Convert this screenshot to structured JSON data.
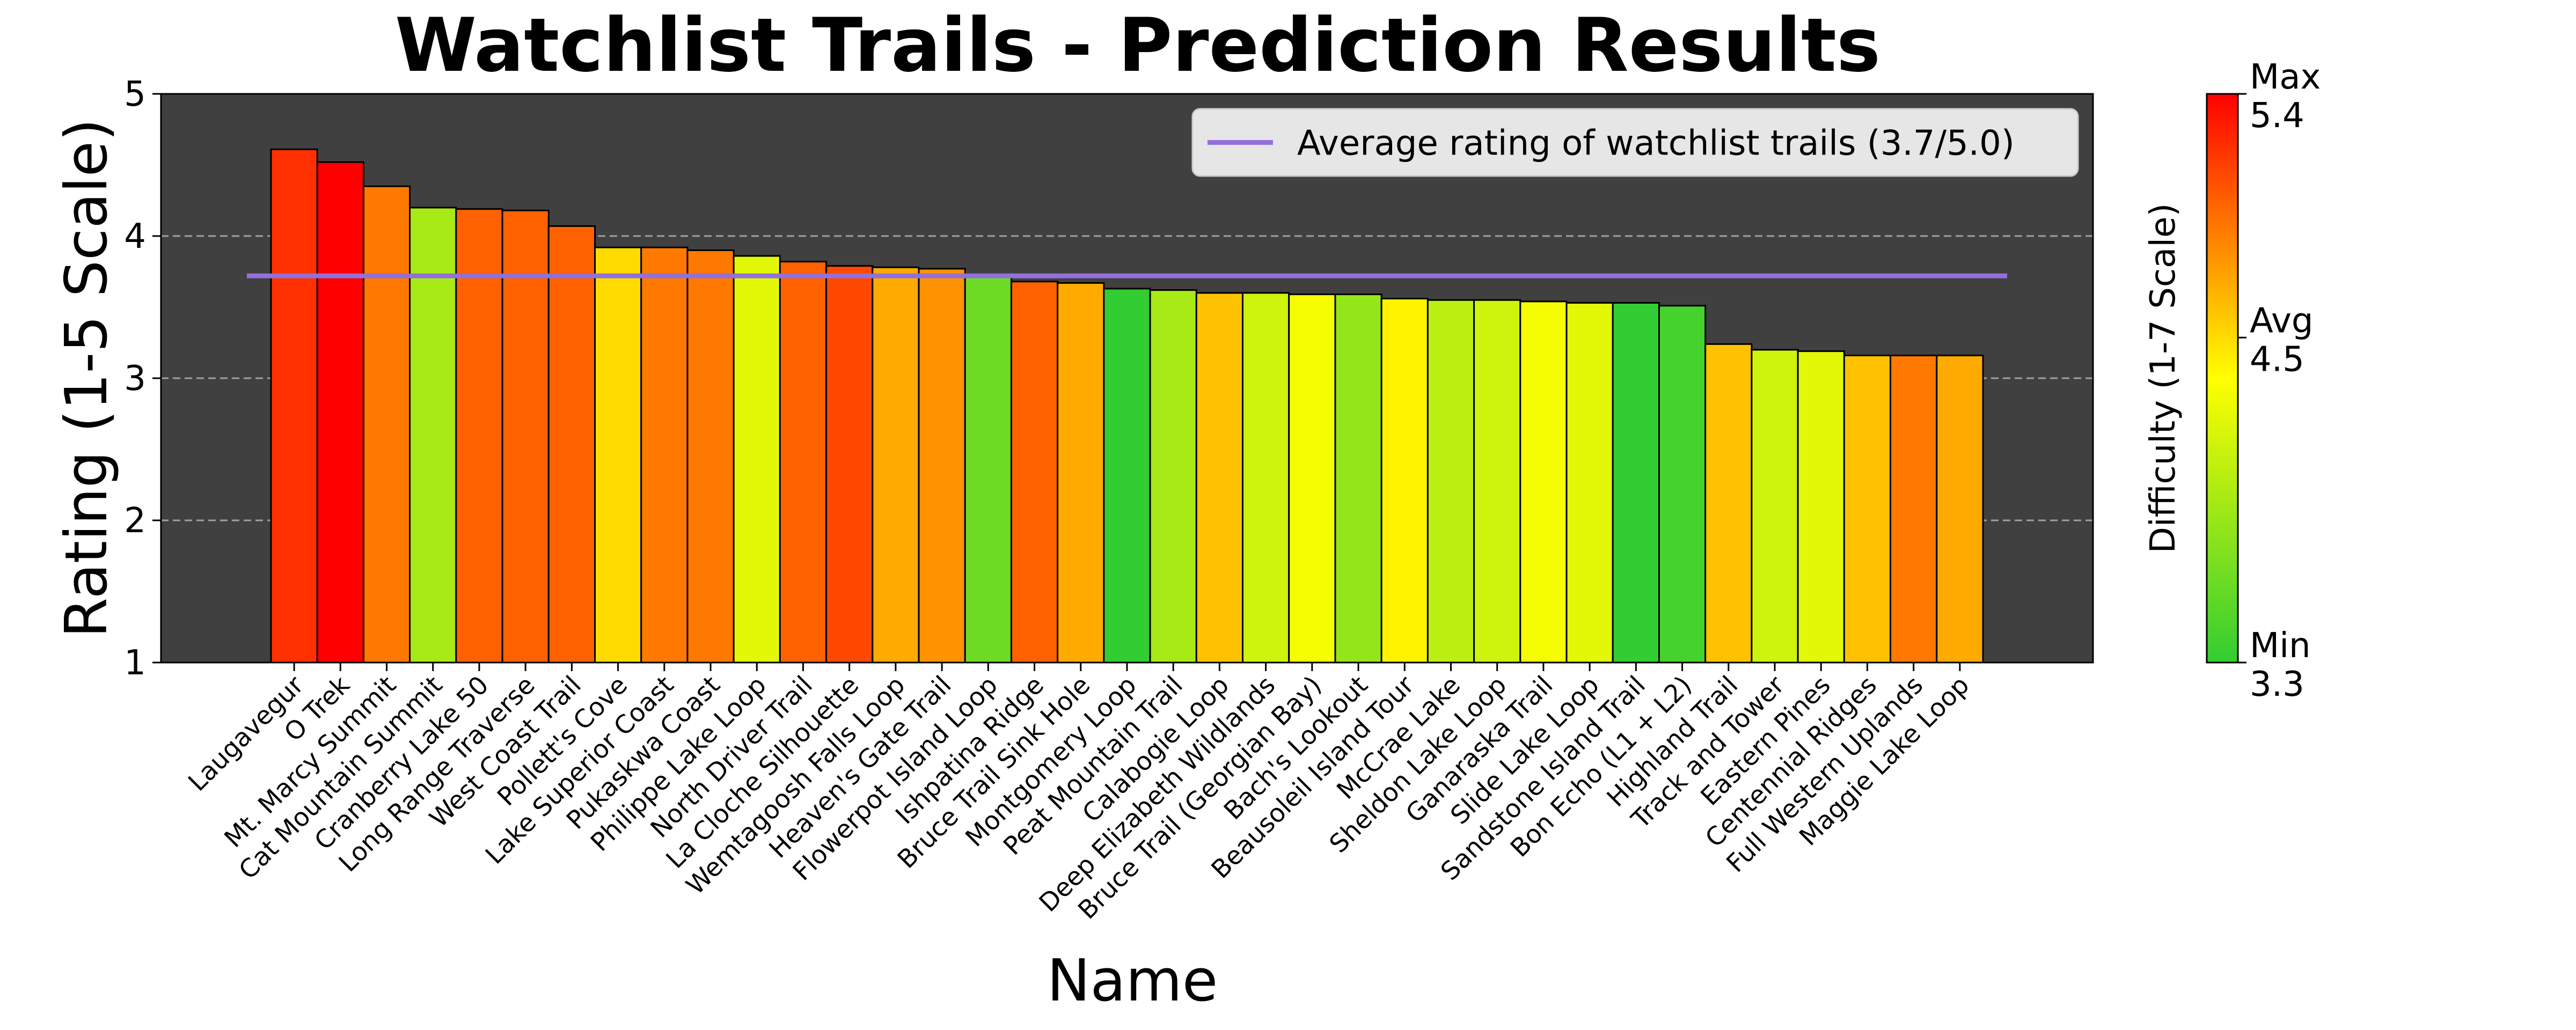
{
  "chart_data": {
    "type": "bar",
    "title": "Watchlist Trails - Prediction Results",
    "xlabel": "Name",
    "ylabel": "Rating (1-5 Scale)",
    "ylim": [
      1,
      5
    ],
    "yticks": [
      "1",
      "2",
      "3",
      "4",
      "5"
    ],
    "grid": "horizontal-dashed",
    "legend_position": "top-right",
    "average_line": {
      "label": "Average rating of watchlist trails (3.7/5.0)",
      "value": 3.72,
      "color": "#9370db"
    },
    "plot_background": "#404040",
    "categories": [
      "Laugavegur",
      "O Trek",
      "Mt. Marcy Summit",
      "Cat Mountain Summit",
      "Cranberry Lake 50",
      "Long Range Traverse",
      "West Coast Trail",
      "Pollett's Cove",
      "Lake Superior Coast",
      "Pukaskwa Coast",
      "Philippe Lake Loop",
      "North Driver Trail",
      "La Cloche Silhouette",
      "Wemtagoosh Falls Loop",
      "Heaven's Gate Trail",
      "Flowerpot Island Loop",
      "Ishpatina Ridge",
      "Bruce Trail Sink Hole",
      "Montgomery Loop",
      "Peat Mountain Trail",
      "Calabogie Loop",
      "Deep Elizabeth Wildlands",
      "Bruce Trail (Georgian Bay)",
      "Bach's Lookout",
      "Beausoleil Island Tour",
      "McCrae Lake",
      "Sheldon Lake Loop",
      "Ganaraska Trail",
      "Slide Lake Loop",
      "Sandstone Island Trail",
      "Bon Echo (L1 + L2)",
      "Highland Trail",
      "Track and Tower",
      "Eastern Pines",
      "Centennial Ridges",
      "Full Western Uplands",
      "Maggie Lake Loop"
    ],
    "values": [
      4.61,
      4.52,
      4.35,
      4.2,
      4.19,
      4.18,
      4.07,
      3.92,
      3.92,
      3.9,
      3.86,
      3.82,
      3.79,
      3.78,
      3.77,
      3.71,
      3.68,
      3.67,
      3.63,
      3.62,
      3.6,
      3.6,
      3.59,
      3.59,
      3.56,
      3.55,
      3.55,
      3.54,
      3.53,
      3.53,
      3.51,
      3.24,
      3.2,
      3.19,
      3.16,
      3.16,
      3.16
    ],
    "difficulty": [
      5.2,
      5.4,
      4.9,
      3.9,
      5.0,
      5.0,
      5.0,
      4.5,
      4.9,
      4.9,
      4.2,
      5.0,
      5.1,
      4.7,
      4.8,
      3.6,
      5.0,
      4.7,
      3.3,
      3.9,
      4.6,
      4.1,
      4.3,
      3.8,
      4.4,
      4.0,
      4.1,
      4.3,
      4.2,
      3.3,
      3.4,
      4.6,
      4.1,
      4.2,
      4.6,
      4.9,
      4.7
    ],
    "colorbar": {
      "label": "Difficulty (1-7 Scale)",
      "min": 3.3,
      "avg": 4.5,
      "max": 5.4,
      "min_label": "Min",
      "avg_label": "Avg",
      "max_label": "Max",
      "min_value": "3.3",
      "avg_value": "4.5",
      "max_value": "5.4",
      "colors": [
        "#32cd32",
        "#ffff00",
        "#ff0000"
      ]
    }
  }
}
